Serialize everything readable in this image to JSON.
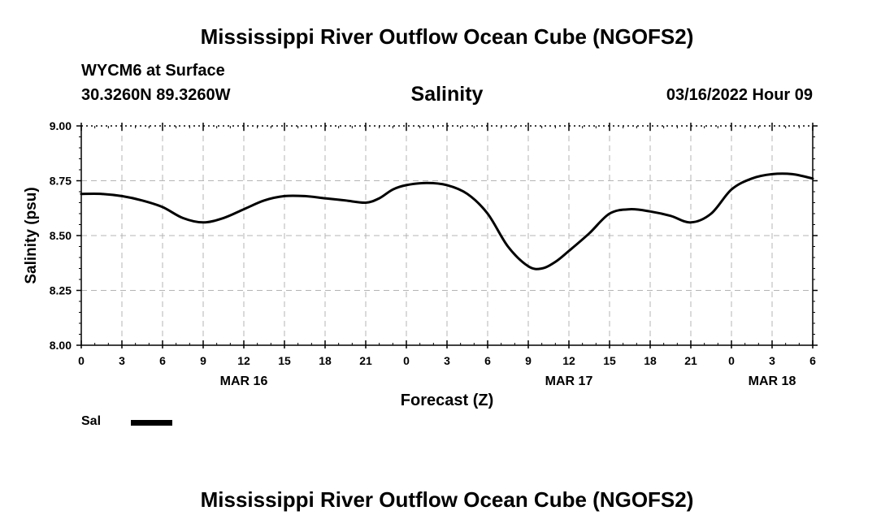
{
  "header": {
    "title": "Mississippi River Outflow Ocean Cube (NGOFS2)",
    "station": "WYCM6 at Surface",
    "coords": "30.3260N  89.3260W",
    "datetime": "03/16/2022 Hour 09",
    "footer_title": "Mississippi River Outflow Ocean Cube (NGOFS2)"
  },
  "legend": {
    "label": "Sal"
  },
  "chart_data": {
    "type": "line",
    "title": "Salinity",
    "xlabel": "Forecast (Z)",
    "ylabel": "Salinity (psu)",
    "ylim": [
      8.0,
      9.0
    ],
    "xlim": [
      0,
      54
    ],
    "yticks": [
      8.0,
      8.25,
      8.5,
      8.75,
      9.0
    ],
    "ytick_labels": [
      "8.00",
      "8.25",
      "8.50",
      "8.75",
      "9.00"
    ],
    "xticks": [
      0,
      3,
      6,
      9,
      12,
      15,
      18,
      21,
      24,
      27,
      30,
      33,
      36,
      39,
      42,
      45,
      48,
      51,
      54
    ],
    "xtick_labels": [
      "0",
      "3",
      "6",
      "9",
      "12",
      "15",
      "18",
      "21",
      "0",
      "3",
      "6",
      "9",
      "12",
      "15",
      "18",
      "21",
      "0",
      "3",
      "6"
    ],
    "date_labels": [
      {
        "x": 12,
        "label": "MAR 16"
      },
      {
        "x": 36,
        "label": "MAR 17"
      },
      {
        "x": 51,
        "label": "MAR 18"
      }
    ],
    "grid": true,
    "series": [
      {
        "name": "Sal",
        "color": "#000000",
        "x": [
          0,
          1.5,
          3,
          4.5,
          6,
          7.5,
          9,
          10.5,
          12,
          13.5,
          15,
          16.5,
          18,
          19.5,
          21,
          22,
          23,
          24,
          25.5,
          27,
          28.5,
          30,
          31.5,
          33,
          34,
          35,
          36,
          37.5,
          39,
          40.5,
          42,
          43.5,
          45,
          46.5,
          48,
          49.5,
          51,
          52.5,
          54
        ],
        "y": [
          8.69,
          8.69,
          8.68,
          8.66,
          8.63,
          8.58,
          8.56,
          8.58,
          8.62,
          8.66,
          8.68,
          8.68,
          8.67,
          8.66,
          8.65,
          8.67,
          8.71,
          8.73,
          8.74,
          8.73,
          8.69,
          8.6,
          8.45,
          8.36,
          8.35,
          8.38,
          8.43,
          8.51,
          8.6,
          8.62,
          8.61,
          8.59,
          8.56,
          8.6,
          8.71,
          8.76,
          8.78,
          8.78,
          8.76
        ]
      }
    ]
  }
}
